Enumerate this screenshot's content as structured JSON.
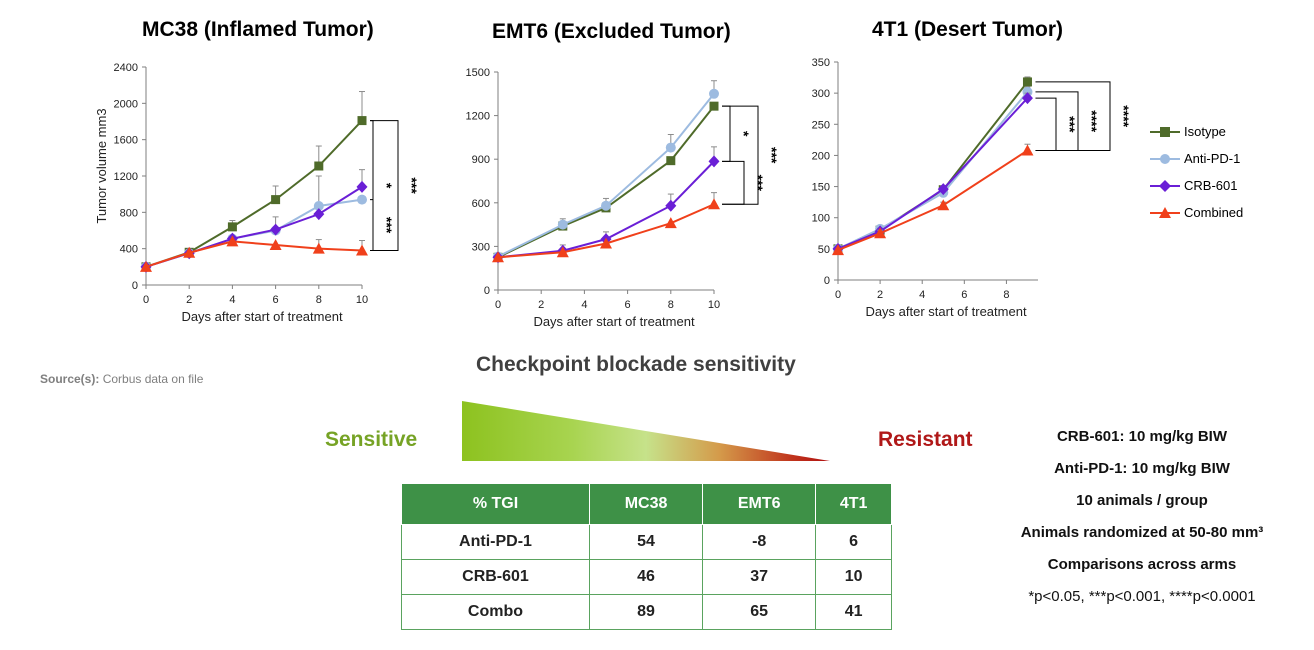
{
  "chart_data": [
    {
      "type": "line",
      "title": "MC38 (Inflamed Tumor)",
      "xlabel": "Days after start of treatment",
      "ylabel": "Tumor volume mm3",
      "xlim": [
        0,
        10
      ],
      "ylim": [
        0,
        2400
      ],
      "xticks": [
        0,
        2,
        4,
        6,
        8,
        10
      ],
      "yticks": [
        0,
        400,
        800,
        1200,
        1600,
        2000,
        2400
      ],
      "x": [
        0,
        2,
        4,
        6,
        8,
        10
      ],
      "series": [
        {
          "name": "Isotype",
          "values": [
            200,
            360,
            640,
            940,
            1310,
            1810
          ],
          "err": [
            0,
            0,
            70,
            150,
            220,
            320
          ]
        },
        {
          "name": "Anti-PD-1",
          "values": [
            200,
            350,
            510,
            600,
            870,
            940
          ],
          "err": [
            0,
            0,
            0,
            150,
            330,
            0
          ]
        },
        {
          "name": "CRB-601",
          "values": [
            200,
            350,
            510,
            610,
            780,
            1080
          ],
          "err": [
            0,
            0,
            0,
            0,
            0,
            190
          ]
        },
        {
          "name": "Combined",
          "values": [
            200,
            355,
            480,
            440,
            400,
            380
          ],
          "err": [
            0,
            0,
            0,
            0,
            100,
            110
          ]
        }
      ],
      "annotations": [
        "*",
        "***",
        "***"
      ]
    },
    {
      "type": "line",
      "title": "EMT6 (Excluded Tumor)",
      "xlabel": "Days after start of treatment",
      "ylabel": "",
      "xlim": [
        0,
        10
      ],
      "ylim": [
        0,
        1500
      ],
      "xticks": [
        0,
        2,
        4,
        6,
        8,
        10
      ],
      "yticks": [
        0,
        300,
        600,
        900,
        1200,
        1500
      ],
      "x": [
        0,
        3,
        5,
        8,
        10
      ],
      "series": [
        {
          "name": "Isotype",
          "values": [
            225,
            440,
            565,
            890,
            1265
          ],
          "err": [
            0,
            0,
            0,
            0,
            0
          ]
        },
        {
          "name": "Anti-PD-1",
          "values": [
            230,
            450,
            580,
            980,
            1350
          ],
          "err": [
            0,
            40,
            50,
            90,
            90
          ]
        },
        {
          "name": "CRB-601",
          "values": [
            225,
            270,
            350,
            580,
            885
          ],
          "err": [
            0,
            40,
            50,
            80,
            100
          ]
        },
        {
          "name": "Combined",
          "values": [
            225,
            260,
            320,
            460,
            590
          ],
          "err": [
            0,
            0,
            0,
            0,
            80
          ]
        }
      ],
      "annotations": [
        "*",
        "***",
        "***"
      ]
    },
    {
      "type": "line",
      "title": "4T1 (Desert Tumor)",
      "xlabel": "Days after start of treatment",
      "ylabel": "",
      "xlim": [
        0,
        9.5
      ],
      "ylim": [
        0,
        350
      ],
      "xticks": [
        0,
        2,
        4,
        6,
        8
      ],
      "yticks": [
        0,
        50,
        100,
        150,
        200,
        250,
        300,
        350
      ],
      "x": [
        0,
        2,
        5,
        9
      ],
      "series": [
        {
          "name": "Isotype",
          "values": [
            50,
            80,
            145,
            318
          ],
          "err": [
            0,
            5,
            5,
            8
          ]
        },
        {
          "name": "Anti-PD-1",
          "values": [
            50,
            82,
            140,
            302
          ],
          "err": [
            0,
            5,
            5,
            8
          ]
        },
        {
          "name": "CRB-601",
          "values": [
            50,
            78,
            146,
            292
          ],
          "err": [
            0,
            5,
            5,
            8
          ]
        },
        {
          "name": "Combined",
          "values": [
            48,
            75,
            120,
            208
          ],
          "err": [
            0,
            5,
            5,
            10
          ]
        }
      ],
      "annotations": [
        "***",
        "****",
        "****"
      ]
    }
  ],
  "colors": {
    "Isotype": "#4f6b2a",
    "Anti-PD-1": "#9dbbe0",
    "CRB-601": "#6a1fd6",
    "Combined": "#f0401b",
    "table_header": "#3e9147",
    "sensitive": "#76a325",
    "resistant": "#b01818"
  },
  "legend": [
    "Isotype",
    "Anti-PD-1",
    "CRB-601",
    "Combined"
  ],
  "source": {
    "label": "Source(s):",
    "text": "Corbus data on file"
  },
  "sensitivity": {
    "title": "Checkpoint blockade sensitivity",
    "left": "Sensitive",
    "right": "Resistant"
  },
  "table": {
    "headers": [
      "% TGI",
      "MC38",
      "EMT6",
      "4T1"
    ],
    "rows": [
      [
        "Anti-PD-1",
        "54",
        "-8",
        "6"
      ],
      [
        "CRB-601",
        "46",
        "37",
        "10"
      ],
      [
        "Combo",
        "89",
        "65",
        "41"
      ]
    ]
  },
  "notes": {
    "lines": [
      "CRB-601: 10 mg/kg BIW",
      "Anti-PD-1: 10 mg/kg BIW",
      "10 animals / group",
      "Animals randomized at 50-80 mm³",
      "Comparisons across arms"
    ],
    "pvalues": "*p<0.05, ***p<0.001, ****p<0.0001"
  }
}
